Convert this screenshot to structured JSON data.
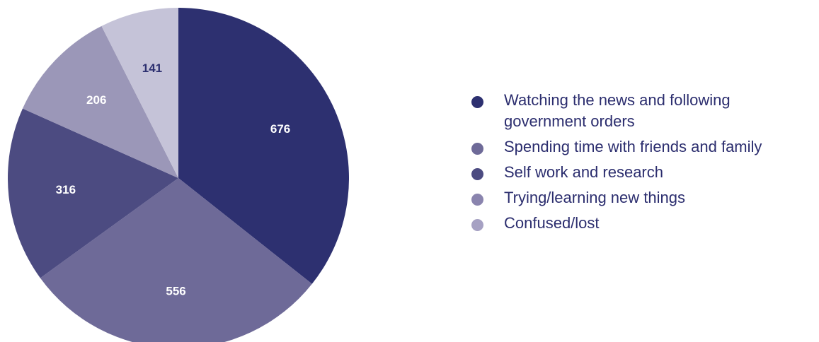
{
  "chart_data": {
    "type": "pie",
    "categories": [
      "Watching the news and following government orders",
      "Spending time with friends and family",
      "Self work and research",
      "Trying/learning new things",
      "Confused/lost"
    ],
    "values": [
      676,
      556,
      316,
      206,
      141
    ],
    "labels": [
      "676",
      "556",
      "316",
      "206",
      "141"
    ],
    "colors": [
      "#2d3070",
      "#6e6a98",
      "#4c4b81",
      "#9b97b8",
      "#c5c3d8"
    ],
    "label_colors": [
      "#ffffff",
      "#ffffff",
      "#ffffff",
      "#ffffff",
      "#2d3070"
    ],
    "legend_colors": [
      "#2d3070",
      "#6e6a98",
      "#4c4b81",
      "#8a84ae",
      "#a6a1c3"
    ],
    "start": "top, clockwise",
    "legend_position": "right"
  }
}
